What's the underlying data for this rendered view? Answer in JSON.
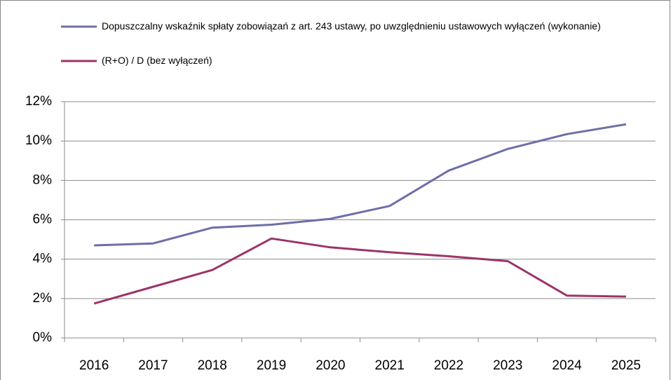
{
  "chart_data": {
    "type": "line",
    "categories": [
      "2016",
      "2017",
      "2018",
      "2019",
      "2020",
      "2021",
      "2022",
      "2023",
      "2024",
      "2025"
    ],
    "series": [
      {
        "name": "Dopuszczalny wskaźnik spłaty zobowiązań z art. 243 ustawy, po uwzględnieniu ustawowych wyłączeń (wykonanie)",
        "color": "#6e6ea9",
        "values": [
          4.7,
          4.8,
          5.6,
          5.75,
          6.05,
          6.7,
          8.5,
          9.6,
          10.35,
          10.85
        ]
      },
      {
        "name": "(R+O) / D (bez wyłączeń)",
        "color": "#9c3468",
        "values": [
          1.75,
          2.6,
          3.45,
          5.05,
          4.6,
          4.35,
          4.15,
          3.9,
          2.15,
          2.1
        ]
      }
    ],
    "ylim": [
      0,
      12
    ],
    "yticks": [
      {
        "value": 0,
        "label": "0%"
      },
      {
        "value": 2,
        "label": "2%"
      },
      {
        "value": 4,
        "label": "4%"
      },
      {
        "value": 6,
        "label": "6%"
      },
      {
        "value": 8,
        "label": "8%"
      },
      {
        "value": 10,
        "label": "10%"
      },
      {
        "value": 12,
        "label": "12%"
      }
    ],
    "grid": true,
    "legend": "top"
  }
}
